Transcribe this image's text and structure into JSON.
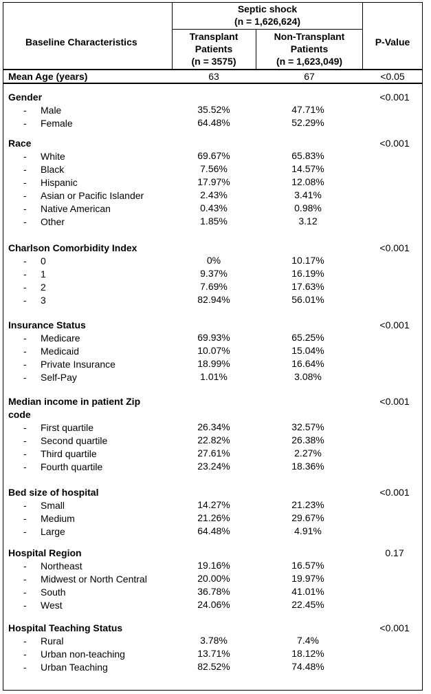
{
  "header": {
    "baseline_label": "Baseline Characteristics",
    "septic_title": "Septic shock",
    "septic_n": "(n = 1,626,624)",
    "transplant_line1": "Transplant",
    "transplant_line2": "Patients",
    "transplant_n": "(n = 3575)",
    "nontransplant_line1": "Non-Transplant",
    "nontransplant_line2": "Patients",
    "nontransplant_n": "(n = 1,623,049)",
    "pvalue_label": "P-Value"
  },
  "mean_age": {
    "label": "Mean Age (years)",
    "transplant": "63",
    "nontransplant": "67",
    "p": "<0.05"
  },
  "sections": [
    {
      "title": "Gender",
      "p": "<0.001",
      "rows": [
        {
          "label": "Male",
          "t": "35.52%",
          "n": "47.71%"
        },
        {
          "label": "Female",
          "t": "64.48%",
          "n": "52.29%"
        }
      ]
    },
    {
      "title": "Race",
      "p": "<0.001",
      "rows": [
        {
          "label": "White",
          "t": "69.67%",
          "n": "65.83%"
        },
        {
          "label": "Black",
          "t": "7.56%",
          "n": "14.57%"
        },
        {
          "label": "Hispanic",
          "t": "17.97%",
          "n": "12.08%"
        },
        {
          "label": "Asian or Pacific Islander",
          "t": "2.43%",
          "n": "3.41%"
        },
        {
          "label": "Native American",
          "t": "0.43%",
          "n": "0.98%"
        },
        {
          "label": "Other",
          "t": "1.85%",
          "n": "3.12"
        }
      ]
    },
    {
      "title": "Charlson Comorbidity Index",
      "p": "<0.001",
      "rows": [
        {
          "label": "0",
          "t": "0%",
          "n": "10.17%"
        },
        {
          "label": "1",
          "t": "9.37%",
          "n": "16.19%"
        },
        {
          "label": "2",
          "t": "7.69%",
          "n": "17.63%"
        },
        {
          "label": "3",
          "t": "82.94%",
          "n": "56.01%"
        }
      ]
    },
    {
      "title": "Insurance Status",
      "p": "<0.001",
      "rows": [
        {
          "label": "Medicare",
          "t": "69.93%",
          "n": "65.25%"
        },
        {
          "label": "Medicaid",
          "t": "10.07%",
          "n": "15.04%"
        },
        {
          "label": "Private Insurance",
          "t": "18.99%",
          "n": "16.64%"
        },
        {
          "label": "Self-Pay",
          "t": "1.01%",
          "n": "3.08%"
        }
      ]
    },
    {
      "title": "Median income in patient Zip",
      "title2": "code",
      "p": "<0.001",
      "rows": [
        {
          "label": "First quartile",
          "t": "26.34%",
          "n": "32.57%"
        },
        {
          "label": "Second quartile",
          "t": "22.82%",
          "n": "26.38%"
        },
        {
          "label": "Third quartile",
          "t": "27.61%",
          "n": "2.27%"
        },
        {
          "label": "Fourth quartile",
          "t": "23.24%",
          "n": "18.36%"
        }
      ]
    },
    {
      "title": "Bed size of hospital",
      "p": "<0.001",
      "rows": [
        {
          "label": "Small",
          "t": "14.27%",
          "n": "21.23%"
        },
        {
          "label": "Medium",
          "t": "21.26%",
          "n": "29.67%"
        },
        {
          "label": "Large",
          "t": "64.48%",
          "n": "4.91%"
        }
      ]
    },
    {
      "title": "Hospital Region",
      "p": "0.17",
      "rows": [
        {
          "label": "Northeast",
          "t": "19.16%",
          "n": "16.57%"
        },
        {
          "label": "Midwest or North Central",
          "t": "20.00%",
          "n": "19.97%"
        },
        {
          "label": "South",
          "t": "36.78%",
          "n": "41.01%"
        },
        {
          "label": "West",
          "t": "24.06%",
          "n": "22.45%"
        }
      ]
    },
    {
      "title": "Hospital Teaching Status",
      "p": "<0.001",
      "rows": [
        {
          "label": "Rural",
          "t": "3.78%",
          "n": "7.4%"
        },
        {
          "label": "Urban non-teaching",
          "t": "13.71%",
          "n": "18.12%"
        },
        {
          "label": "Urban Teaching",
          "t": "82.52%",
          "n": "74.48%"
        }
      ]
    }
  ]
}
